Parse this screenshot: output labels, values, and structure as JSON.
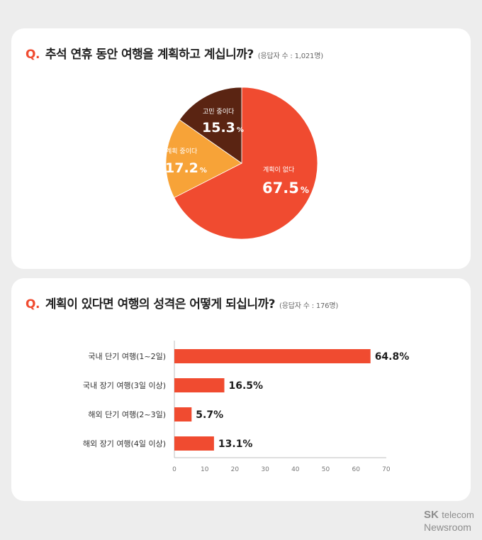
{
  "colors": {
    "accent": "#f04b30",
    "pie_none": "#f04b30",
    "pie_planning": "#f7a338",
    "pie_considering": "#5a2412",
    "bar": "#f04b30",
    "background": "#ededed"
  },
  "brand": {
    "sk": "SK",
    "telecom": "telecom",
    "newsroom": "Newsroom"
  },
  "chart_data": [
    {
      "type": "pie",
      "q_mark": "Q.",
      "title": "추석 연휴 동안 여행을 계획하고 계십니까?",
      "subtitle": "(응답자 수 : 1,021명)",
      "slices": [
        {
          "label": "계획이 없다",
          "value": 67.5,
          "value_text": "67.5",
          "unit": "%",
          "color": "#f04b30"
        },
        {
          "label": "계획 중이다",
          "value": 17.2,
          "value_text": "17.2",
          "unit": "%",
          "color": "#f7a338"
        },
        {
          "label": "고민 중이다",
          "value": 15.3,
          "value_text": "15.3",
          "unit": "%",
          "color": "#5a2412"
        }
      ]
    },
    {
      "type": "bar",
      "orientation": "horizontal",
      "q_mark": "Q.",
      "title": "계획이 있다면 여행의 성격은 어떻게 되십니까?",
      "subtitle": "(응답자 수 : 176명)",
      "categories": [
        "국내 단기 여행(1~2일)",
        "국내 장기 여행(3일 이상)",
        "해외 단기 여행(2~3일)",
        "해외 장기 여행(4일 이상)"
      ],
      "values": [
        64.8,
        16.5,
        5.7,
        13.1
      ],
      "value_labels": [
        "64.8%",
        "16.5%",
        "5.7%",
        "13.1%"
      ],
      "xlim": [
        0,
        70
      ],
      "xticks": [
        "0",
        "10",
        "20",
        "30",
        "40",
        "50",
        "60",
        "70"
      ],
      "grid": false
    }
  ]
}
